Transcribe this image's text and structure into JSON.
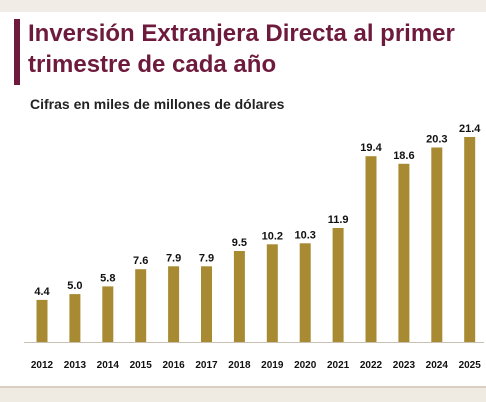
{
  "header": {
    "title": "Inversión Extranjera Directa al primer trimestre de cada año",
    "subtitle": "Cifras en miles de millones de dólares"
  },
  "colors": {
    "bar": "#a88a33",
    "title": "#6e1a3d",
    "axis": "#c8c0b2"
  },
  "chart_data": {
    "type": "bar",
    "title": "Inversión Extranjera Directa al primer trimestre de cada año",
    "subtitle": "Cifras en miles de millones de dólares",
    "xlabel": "",
    "ylabel": "",
    "categories": [
      "2012",
      "2013",
      "2014",
      "2015",
      "2016",
      "2017",
      "2018",
      "2019",
      "2020",
      "2021",
      "2022",
      "2023",
      "2024",
      "2025"
    ],
    "values": [
      4.4,
      5.0,
      5.8,
      7.6,
      7.9,
      7.9,
      9.5,
      10.2,
      10.3,
      11.9,
      19.4,
      18.6,
      20.3,
      21.4
    ],
    "value_labels": [
      "4.4",
      "5.0",
      "5.8",
      "7.6",
      "7.9",
      "7.9",
      "9.5",
      "10.2",
      "10.3",
      "11.9",
      "19.4",
      "18.6",
      "20.3",
      "21.4"
    ],
    "ylim": [
      0,
      21.4
    ],
    "grid": false,
    "legend": "none"
  }
}
